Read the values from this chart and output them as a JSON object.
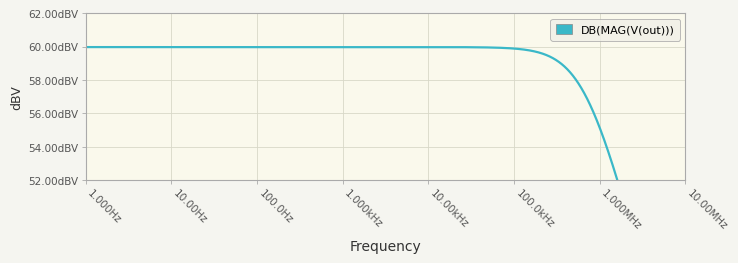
{
  "title": "",
  "xlabel": "Frequency",
  "ylabel": "dBV",
  "background_color": "#f5f5f0",
  "plot_bg_color": "#faf9ec",
  "line_color": "#3ab8c8",
  "line_width": 1.6,
  "legend_label": "DB(MAG(V(out)))",
  "legend_patch_color": "#3ab8c8",
  "xmin": 1,
  "xmax": 10000000,
  "ymin": 52.0,
  "ymax": 62.0,
  "yticks": [
    52.0,
    54.0,
    56.0,
    58.0,
    60.0,
    62.0
  ],
  "ytick_labels": [
    "52.00dBV",
    "54.00dBV",
    "56.00dBV",
    "58.00dBV",
    "60.00dBV",
    "62.00dBV"
  ],
  "xtick_positions": [
    1,
    10,
    100,
    1000,
    10000,
    100000,
    1000000,
    10000000
  ],
  "xtick_labels": [
    "1.000Hz",
    "10.00Hz",
    "100.0Hz",
    "1.000kHz",
    "10.00kHz",
    "100.0kHz",
    "1.000MHz",
    "10.00MHz"
  ],
  "flat_level": 59.97,
  "f3db": 700000,
  "grid_major_color": "#d8d8c8",
  "grid_major_lw": 0.6,
  "spine_color": "#aaaaaa",
  "tick_label_color": "#555555",
  "tick_label_fontsize": 7.5,
  "xlabel_fontsize": 10,
  "ylabel_fontsize": 9
}
